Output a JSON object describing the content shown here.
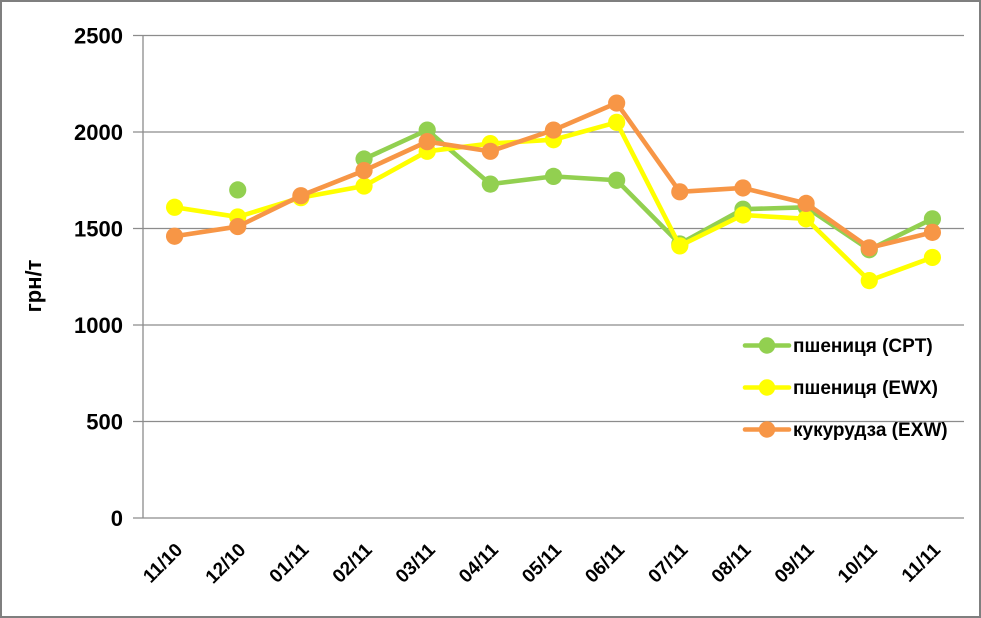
{
  "chart_data": {
    "type": "line",
    "title": "",
    "xlabel": "",
    "ylabel": "грн/т",
    "categories": [
      "11/10",
      "12/10",
      "01/11",
      "02/11",
      "03/11",
      "04/11",
      "05/11",
      "06/11",
      "07/11",
      "08/11",
      "09/11",
      "10/11",
      "11/11"
    ],
    "series": [
      {
        "name": "пшениця (CPT)",
        "color": "#92D050",
        "values": [
          null,
          1700,
          null,
          1860,
          2010,
          1730,
          1770,
          1750,
          1420,
          1600,
          1610,
          1390,
          1550
        ]
      },
      {
        "name": "пшениця (EWX)",
        "color": "#FFFF00",
        "values": [
          1610,
          1560,
          1660,
          1720,
          1900,
          1940,
          1960,
          2050,
          1410,
          1570,
          1550,
          1230,
          1350
        ]
      },
      {
        "name": "кукурудза (EXW)",
        "color": "#F79646",
        "values": [
          1460,
          1510,
          1670,
          1800,
          1950,
          1900,
          2010,
          2150,
          1690,
          1710,
          1630,
          1400,
          1480
        ]
      }
    ],
    "ylim": [
      0,
      2500
    ],
    "yticks": [
      0,
      500,
      1000,
      1500,
      2000,
      2500
    ],
    "grid": true,
    "x_tick_rotation": 45,
    "legend_position": "right-middle",
    "marker": "circle",
    "colors": {
      "grid": "#8C8C8C",
      "axis": "#8C8C8C",
      "text": "#000000",
      "background": "#FFFFFF",
      "border": "#7F7F7F"
    }
  }
}
